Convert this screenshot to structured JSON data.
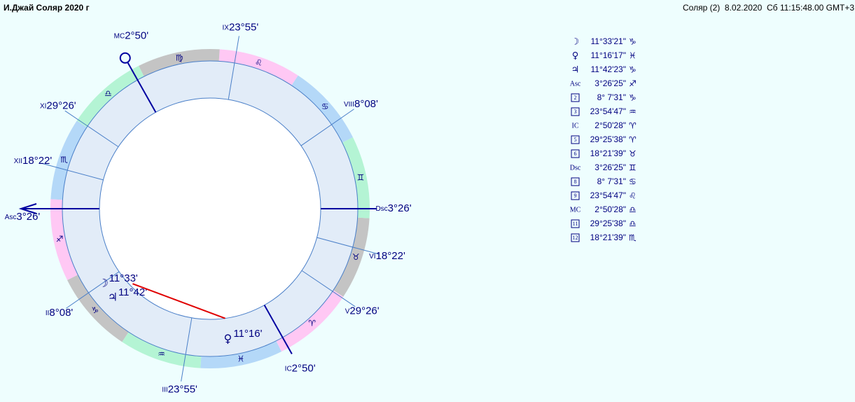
{
  "header": {
    "title": "И.Джай Соляр 2020 г",
    "info": "Соляр (2)  8.02.2020  Сб 11:15:48.00 GMT+3"
  },
  "wheel": {
    "signs": [
      "♈",
      "♉",
      "♊",
      "♋",
      "♌",
      "♍",
      "♎",
      "♏",
      "♐",
      "♑",
      "♒",
      "♓"
    ],
    "cusps": [
      {
        "numeral": "Asc",
        "degree": "3°26'"
      },
      {
        "numeral": "II",
        "degree": "8°08'"
      },
      {
        "numeral": "III",
        "degree": "23°55'"
      },
      {
        "numeral": "IC",
        "degree": "2°50'"
      },
      {
        "numeral": "V",
        "degree": "29°26'"
      },
      {
        "numeral": "VI",
        "degree": "18°22'"
      },
      {
        "numeral": "Dsc",
        "degree": "3°26'"
      },
      {
        "numeral": "VIII",
        "degree": "8°08'"
      },
      {
        "numeral": "IX",
        "degree": "23°55'"
      },
      {
        "numeral": "MC",
        "degree": "2°50'"
      },
      {
        "numeral": "XI",
        "degree": "29°26'"
      },
      {
        "numeral": "XII",
        "degree": "18°22'"
      }
    ],
    "planets": [
      {
        "glyph": "☽",
        "degree": "11°33'"
      },
      {
        "glyph": "♀",
        "degree": "11°16'"
      },
      {
        "glyph": "♃",
        "degree": "11°42'"
      }
    ]
  },
  "positions": [
    {
      "symbol": "☽",
      "position": "11°33'21\"",
      "sign": "♑"
    },
    {
      "symbol": "♀",
      "position": "11°16'17\"",
      "sign": "♓"
    },
    {
      "symbol": "♃",
      "position": "11°42'23\"",
      "sign": "♑"
    },
    {
      "symbol": "Asc",
      "position": "3°26'25\"",
      "sign": "♐"
    },
    {
      "symbol": "2",
      "position": "8° 7'31\"",
      "sign": "♑"
    },
    {
      "symbol": "3",
      "position": "23°54'47\"",
      "sign": "♒"
    },
    {
      "symbol": "IC",
      "position": "2°50'28\"",
      "sign": "♈"
    },
    {
      "symbol": "5",
      "position": "29°25'38\"",
      "sign": "♈"
    },
    {
      "symbol": "6",
      "position": "18°21'39\"",
      "sign": "♉"
    },
    {
      "symbol": "Dsc",
      "position": "3°26'25\"",
      "sign": "♊"
    },
    {
      "symbol": "8",
      "position": "8° 7'31\"",
      "sign": "♋"
    },
    {
      "symbol": "9",
      "position": "23°54'47\"",
      "sign": "♌"
    },
    {
      "symbol": "MC",
      "position": "2°50'28\"",
      "sign": "♎"
    },
    {
      "symbol": "11",
      "position": "29°25'38\"",
      "sign": "♎"
    },
    {
      "symbol": "12",
      "position": "18°21'39\"",
      "sign": "♏"
    }
  ]
}
